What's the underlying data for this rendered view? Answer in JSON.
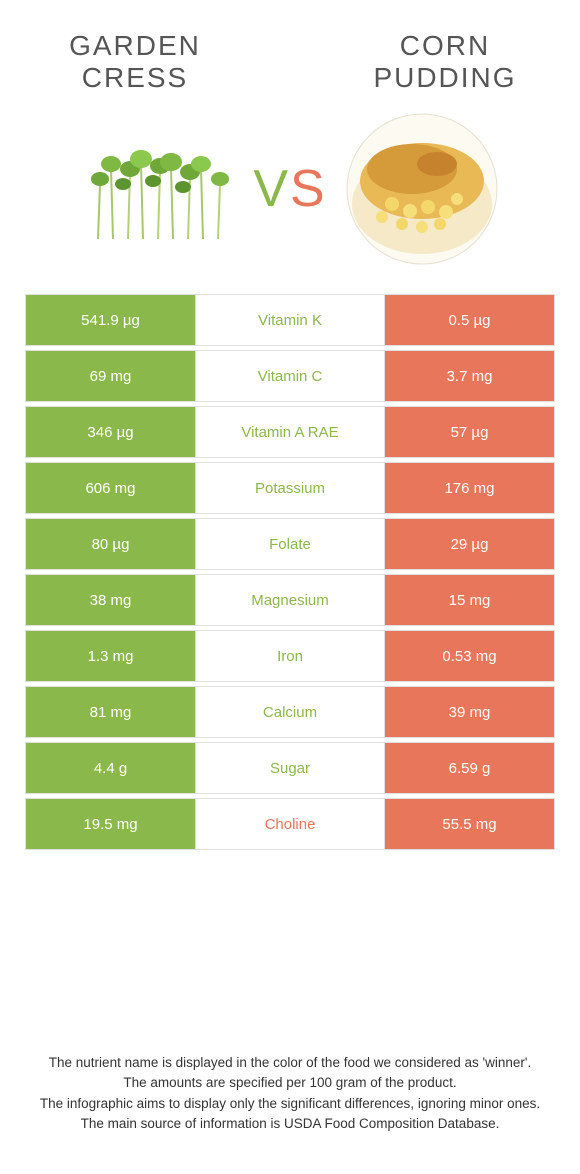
{
  "colors": {
    "green": "#8bb84a",
    "orange": "#e8765a",
    "text": "#555555",
    "border": "#e0e0e0",
    "background": "#ffffff"
  },
  "font": {
    "title_size": 28,
    "vs_size": 52,
    "cell_size": 15,
    "footer_size": 13.5
  },
  "left_food": {
    "name": "GARDEN CRESS"
  },
  "right_food": {
    "name": "CORN PUDDING"
  },
  "vs": {
    "v": "V",
    "s": "S"
  },
  "rows": [
    {
      "left": "541.9 µg",
      "nutrient": "Vitamin K",
      "right": "0.5 µg",
      "winner": "left"
    },
    {
      "left": "69 mg",
      "nutrient": "Vitamin C",
      "right": "3.7 mg",
      "winner": "left"
    },
    {
      "left": "346 µg",
      "nutrient": "Vitamin A RAE",
      "right": "57 µg",
      "winner": "left"
    },
    {
      "left": "606 mg",
      "nutrient": "Potassium",
      "right": "176 mg",
      "winner": "left"
    },
    {
      "left": "80 µg",
      "nutrient": "Folate",
      "right": "29 µg",
      "winner": "left"
    },
    {
      "left": "38 mg",
      "nutrient": "Magnesium",
      "right": "15 mg",
      "winner": "left"
    },
    {
      "left": "1.3 mg",
      "nutrient": "Iron",
      "right": "0.53 mg",
      "winner": "left"
    },
    {
      "left": "81 mg",
      "nutrient": "Calcium",
      "right": "39 mg",
      "winner": "left"
    },
    {
      "left": "4.4 g",
      "nutrient": "Sugar",
      "right": "6.59 g",
      "winner": "left"
    },
    {
      "left": "19.5 mg",
      "nutrient": "Choline",
      "right": "55.5 mg",
      "winner": "right"
    }
  ],
  "footer": {
    "l1": "The nutrient name is displayed in the color of the food we considered as 'winner'.",
    "l2": "The amounts are specified per 100 gram of the product.",
    "l3": "The infographic aims to display only the significant differences, ignoring minor ones.",
    "l4": "The main source of information is USDA Food Composition Database."
  }
}
